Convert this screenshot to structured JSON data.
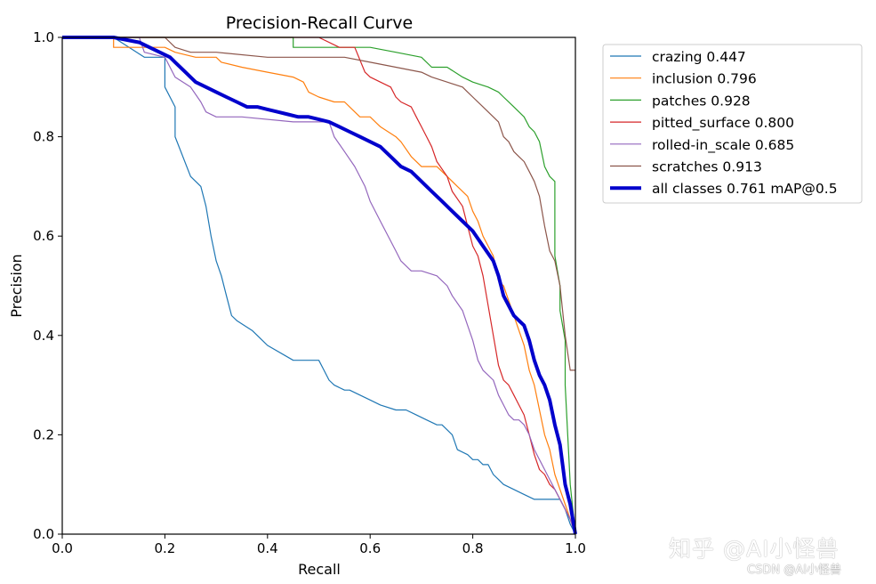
{
  "chart_data": {
    "type": "line",
    "title": "Precision-Recall Curve",
    "xlabel": "Recall",
    "ylabel": "Precision",
    "xlim": [
      0,
      1
    ],
    "ylim": [
      0,
      1
    ],
    "xticks": [
      "0.0",
      "0.2",
      "0.4",
      "0.6",
      "0.8",
      "1.0"
    ],
    "yticks": [
      "0.0",
      "0.2",
      "0.4",
      "0.6",
      "0.8",
      "1.0"
    ],
    "grid": false,
    "legend_position": "outside-right-top",
    "series": [
      {
        "name": "crazing 0.447",
        "color": "#1f77b4",
        "width": 1.2,
        "x": [
          0,
          0.1,
          0.16,
          0.2,
          0.2,
          0.22,
          0.22,
          0.25,
          0.27,
          0.28,
          0.29,
          0.3,
          0.31,
          0.32,
          0.33,
          0.34,
          0.37,
          0.38,
          0.4,
          0.45,
          0.5,
          0.51,
          0.52,
          0.53,
          0.55,
          0.56,
          0.6,
          0.62,
          0.65,
          0.67,
          0.69,
          0.71,
          0.73,
          0.74,
          0.75,
          0.76,
          0.77,
          0.79,
          0.8,
          0.81,
          0.82,
          0.83,
          0.84,
          0.85,
          0.86,
          0.88,
          0.9,
          0.92,
          0.94,
          0.96,
          0.97,
          0.98,
          0.99,
          1.0
        ],
        "y": [
          1.0,
          1.0,
          0.96,
          0.96,
          0.9,
          0.86,
          0.8,
          0.72,
          0.7,
          0.66,
          0.6,
          0.55,
          0.52,
          0.48,
          0.44,
          0.43,
          0.41,
          0.4,
          0.38,
          0.35,
          0.35,
          0.33,
          0.31,
          0.3,
          0.29,
          0.29,
          0.27,
          0.26,
          0.25,
          0.25,
          0.24,
          0.23,
          0.22,
          0.22,
          0.21,
          0.2,
          0.17,
          0.16,
          0.15,
          0.15,
          0.14,
          0.14,
          0.12,
          0.11,
          0.1,
          0.09,
          0.08,
          0.07,
          0.07,
          0.07,
          0.07,
          0.05,
          0.02,
          0.0
        ]
      },
      {
        "name": "inclusion 0.796",
        "color": "#ff7f0e",
        "width": 1.2,
        "x": [
          0,
          0.1,
          0.1,
          0.2,
          0.22,
          0.26,
          0.3,
          0.31,
          0.35,
          0.4,
          0.45,
          0.47,
          0.48,
          0.5,
          0.53,
          0.55,
          0.56,
          0.58,
          0.6,
          0.62,
          0.65,
          0.66,
          0.68,
          0.7,
          0.73,
          0.75,
          0.77,
          0.79,
          0.8,
          0.81,
          0.82,
          0.83,
          0.84,
          0.85,
          0.86,
          0.87,
          0.88,
          0.89,
          0.9,
          0.91,
          0.92,
          0.93,
          0.94,
          0.95,
          0.96,
          0.97,
          0.98,
          0.99,
          1.0
        ],
        "y": [
          1.0,
          1.0,
          0.98,
          0.98,
          0.97,
          0.96,
          0.96,
          0.95,
          0.94,
          0.93,
          0.92,
          0.91,
          0.89,
          0.88,
          0.87,
          0.87,
          0.86,
          0.84,
          0.84,
          0.82,
          0.8,
          0.79,
          0.76,
          0.74,
          0.74,
          0.72,
          0.7,
          0.68,
          0.65,
          0.63,
          0.6,
          0.58,
          0.56,
          0.51,
          0.5,
          0.47,
          0.44,
          0.41,
          0.38,
          0.33,
          0.3,
          0.25,
          0.2,
          0.17,
          0.12,
          0.09,
          0.06,
          0.03,
          0.0
        ]
      },
      {
        "name": "patches 0.928",
        "color": "#2ca02c",
        "width": 1.2,
        "x": [
          0,
          0.45,
          0.45,
          0.6,
          0.65,
          0.7,
          0.72,
          0.75,
          0.78,
          0.8,
          0.83,
          0.85,
          0.86,
          0.88,
          0.9,
          0.91,
          0.92,
          0.93,
          0.94,
          0.95,
          0.96,
          0.96,
          0.97,
          0.97,
          0.98,
          0.98,
          0.99,
          1.0
        ],
        "y": [
          1.0,
          1.0,
          0.98,
          0.98,
          0.97,
          0.96,
          0.94,
          0.94,
          0.92,
          0.91,
          0.9,
          0.89,
          0.88,
          0.86,
          0.84,
          0.82,
          0.81,
          0.79,
          0.74,
          0.72,
          0.71,
          0.56,
          0.5,
          0.45,
          0.39,
          0.3,
          0.1,
          0.0
        ]
      },
      {
        "name": "pitted_surface 0.800",
        "color": "#d62728",
        "width": 1.2,
        "x": [
          0,
          0.5,
          0.54,
          0.57,
          0.59,
          0.6,
          0.62,
          0.64,
          0.65,
          0.66,
          0.68,
          0.69,
          0.7,
          0.71,
          0.72,
          0.73,
          0.75,
          0.76,
          0.78,
          0.79,
          0.8,
          0.81,
          0.82,
          0.83,
          0.84,
          0.85,
          0.86,
          0.87,
          0.88,
          0.89,
          0.9,
          0.91,
          0.92,
          0.93,
          0.94,
          0.95,
          0.96,
          0.97,
          0.98,
          0.99,
          1.0
        ],
        "y": [
          1.0,
          1.0,
          0.98,
          0.98,
          0.93,
          0.92,
          0.91,
          0.9,
          0.88,
          0.87,
          0.86,
          0.84,
          0.82,
          0.8,
          0.78,
          0.75,
          0.72,
          0.69,
          0.66,
          0.62,
          0.58,
          0.56,
          0.52,
          0.46,
          0.4,
          0.34,
          0.31,
          0.3,
          0.28,
          0.26,
          0.24,
          0.2,
          0.16,
          0.13,
          0.12,
          0.1,
          0.09,
          0.07,
          0.05,
          0.03,
          0.0
        ]
      },
      {
        "name": "rolled-in_scale 0.685",
        "color": "#9467bd",
        "width": 1.2,
        "x": [
          0,
          0.15,
          0.16,
          0.2,
          0.22,
          0.25,
          0.27,
          0.28,
          0.3,
          0.35,
          0.45,
          0.52,
          0.53,
          0.55,
          0.57,
          0.59,
          0.6,
          0.62,
          0.63,
          0.65,
          0.66,
          0.68,
          0.7,
          0.73,
          0.75,
          0.76,
          0.78,
          0.79,
          0.8,
          0.81,
          0.82,
          0.84,
          0.85,
          0.86,
          0.87,
          0.88,
          0.89,
          0.9,
          0.91,
          0.92,
          0.93,
          0.94,
          0.95,
          0.96,
          0.97,
          0.98,
          0.99,
          1.0
        ],
        "y": [
          1.0,
          1.0,
          0.97,
          0.96,
          0.92,
          0.9,
          0.87,
          0.85,
          0.84,
          0.84,
          0.83,
          0.83,
          0.8,
          0.77,
          0.74,
          0.7,
          0.67,
          0.63,
          0.61,
          0.57,
          0.55,
          0.53,
          0.53,
          0.52,
          0.5,
          0.48,
          0.45,
          0.42,
          0.39,
          0.35,
          0.33,
          0.31,
          0.28,
          0.26,
          0.24,
          0.23,
          0.23,
          0.22,
          0.2,
          0.17,
          0.15,
          0.13,
          0.11,
          0.09,
          0.07,
          0.05,
          0.03,
          0.0
        ]
      },
      {
        "name": "scratches 0.913",
        "color": "#8c564b",
        "width": 1.2,
        "x": [
          0,
          0.2,
          0.22,
          0.25,
          0.3,
          0.4,
          0.55,
          0.6,
          0.65,
          0.7,
          0.72,
          0.75,
          0.78,
          0.79,
          0.8,
          0.82,
          0.83,
          0.84,
          0.85,
          0.86,
          0.87,
          0.88,
          0.89,
          0.9,
          0.91,
          0.92,
          0.93,
          0.94,
          0.95,
          0.96,
          0.97,
          0.98,
          0.99,
          1.0
        ],
        "y": [
          1.0,
          1.0,
          0.98,
          0.97,
          0.97,
          0.96,
          0.96,
          0.95,
          0.94,
          0.93,
          0.92,
          0.91,
          0.9,
          0.89,
          0.88,
          0.86,
          0.85,
          0.84,
          0.83,
          0.8,
          0.79,
          0.77,
          0.76,
          0.75,
          0.73,
          0.71,
          0.68,
          0.62,
          0.57,
          0.55,
          0.5,
          0.4,
          0.33,
          0.33
        ]
      },
      {
        "name": "all classes 0.761 mAP@0.5",
        "color": "#0000cc",
        "width": 4,
        "x": [
          0,
          0.1,
          0.15,
          0.17,
          0.19,
          0.21,
          0.22,
          0.24,
          0.26,
          0.28,
          0.3,
          0.32,
          0.34,
          0.36,
          0.38,
          0.4,
          0.42,
          0.44,
          0.46,
          0.48,
          0.5,
          0.52,
          0.54,
          0.56,
          0.58,
          0.6,
          0.62,
          0.64,
          0.66,
          0.68,
          0.7,
          0.72,
          0.74,
          0.76,
          0.78,
          0.8,
          0.82,
          0.84,
          0.85,
          0.86,
          0.87,
          0.88,
          0.89,
          0.9,
          0.91,
          0.92,
          0.93,
          0.94,
          0.95,
          0.96,
          0.97,
          0.975,
          0.98,
          0.99,
          1.0
        ],
        "y": [
          1.0,
          1.0,
          0.99,
          0.98,
          0.97,
          0.96,
          0.95,
          0.93,
          0.91,
          0.9,
          0.89,
          0.88,
          0.87,
          0.86,
          0.86,
          0.855,
          0.85,
          0.845,
          0.84,
          0.84,
          0.835,
          0.83,
          0.82,
          0.81,
          0.8,
          0.79,
          0.78,
          0.76,
          0.74,
          0.73,
          0.71,
          0.69,
          0.67,
          0.65,
          0.63,
          0.61,
          0.58,
          0.55,
          0.52,
          0.48,
          0.46,
          0.44,
          0.43,
          0.42,
          0.39,
          0.35,
          0.32,
          0.3,
          0.27,
          0.22,
          0.18,
          0.14,
          0.1,
          0.06,
          0.0
        ]
      }
    ]
  },
  "watermark": {
    "main": "知乎 @AI小怪兽",
    "sub": "CSDN @AI小怪兽"
  }
}
